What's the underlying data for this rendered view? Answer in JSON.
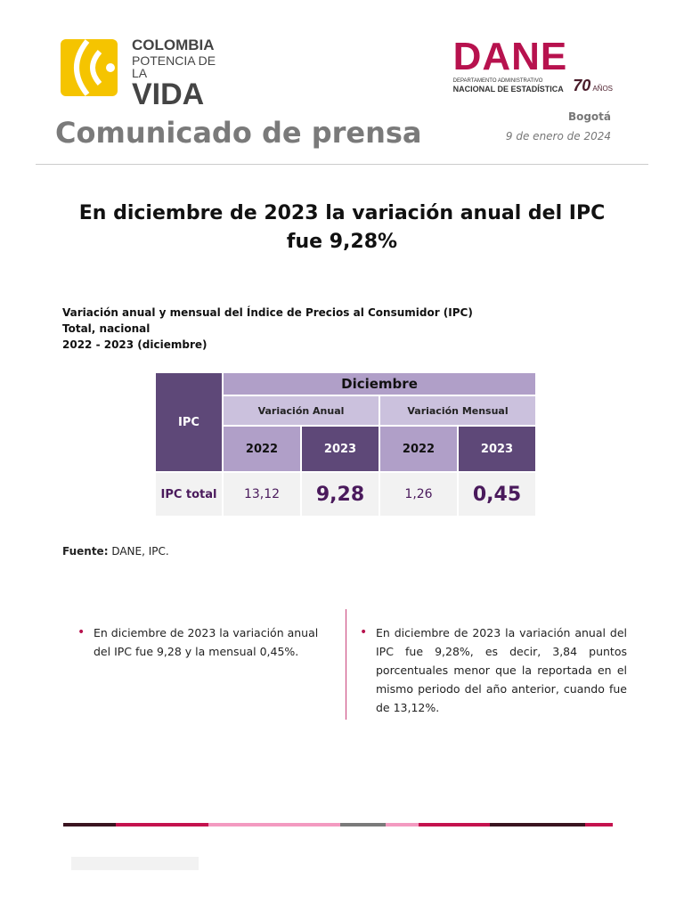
{
  "header": {
    "colombia_logo": {
      "line1": "COLOMBIA",
      "line2": "POTENCIA DE LA",
      "line3": "VIDA"
    },
    "dane_logo": {
      "name": "DANE",
      "sub1": "DEPARTAMENTO ADMINISTRATIVO",
      "sub2": "NACIONAL DE ESTADÍSTICA",
      "years": "70",
      "years_label": "AÑOS"
    },
    "title": "Comunicado de prensa",
    "city": "Bogotá",
    "date": "9 de enero de 2024"
  },
  "headline": "En diciembre de 2023 la variación anual del IPC fue 9,28%",
  "caption": {
    "line1": "Variación anual y mensual del Índice de Precios al Consumidor (IPC)",
    "line2": "Total, nacional",
    "line3": "2022 - 2023 (diciembre)"
  },
  "table": {
    "row_header": "IPC",
    "month": "Diciembre",
    "groups": [
      "Variación Anual",
      "Variación Mensual"
    ],
    "years": [
      "2022",
      "2023",
      "2022",
      "2023"
    ],
    "rows": [
      {
        "label": "IPC total",
        "values": [
          "13,12",
          "9,28",
          "1,26",
          "0,45"
        ]
      }
    ]
  },
  "source": {
    "label": "Fuente:",
    "text": " DANE, IPC."
  },
  "bullets": [
    "En diciembre de 2023 la variación anual del IPC fue 9,28 y la mensual 0,45%.",
    "En diciembre de 2023 la variación anual del IPC fue 9,28%, es decir, 3,84 puntos porcentuales menor que la reportada en el mismo periodo del año anterior, cuando fue de 13,12%."
  ],
  "colors": {
    "brand": "#b7124e",
    "table_dark": "#5e4878",
    "table_mid": "#b09fc8",
    "table_light": "#cbc1dd",
    "value_text": "#4a1a5c",
    "colombia_yellow": "#f5c400"
  }
}
